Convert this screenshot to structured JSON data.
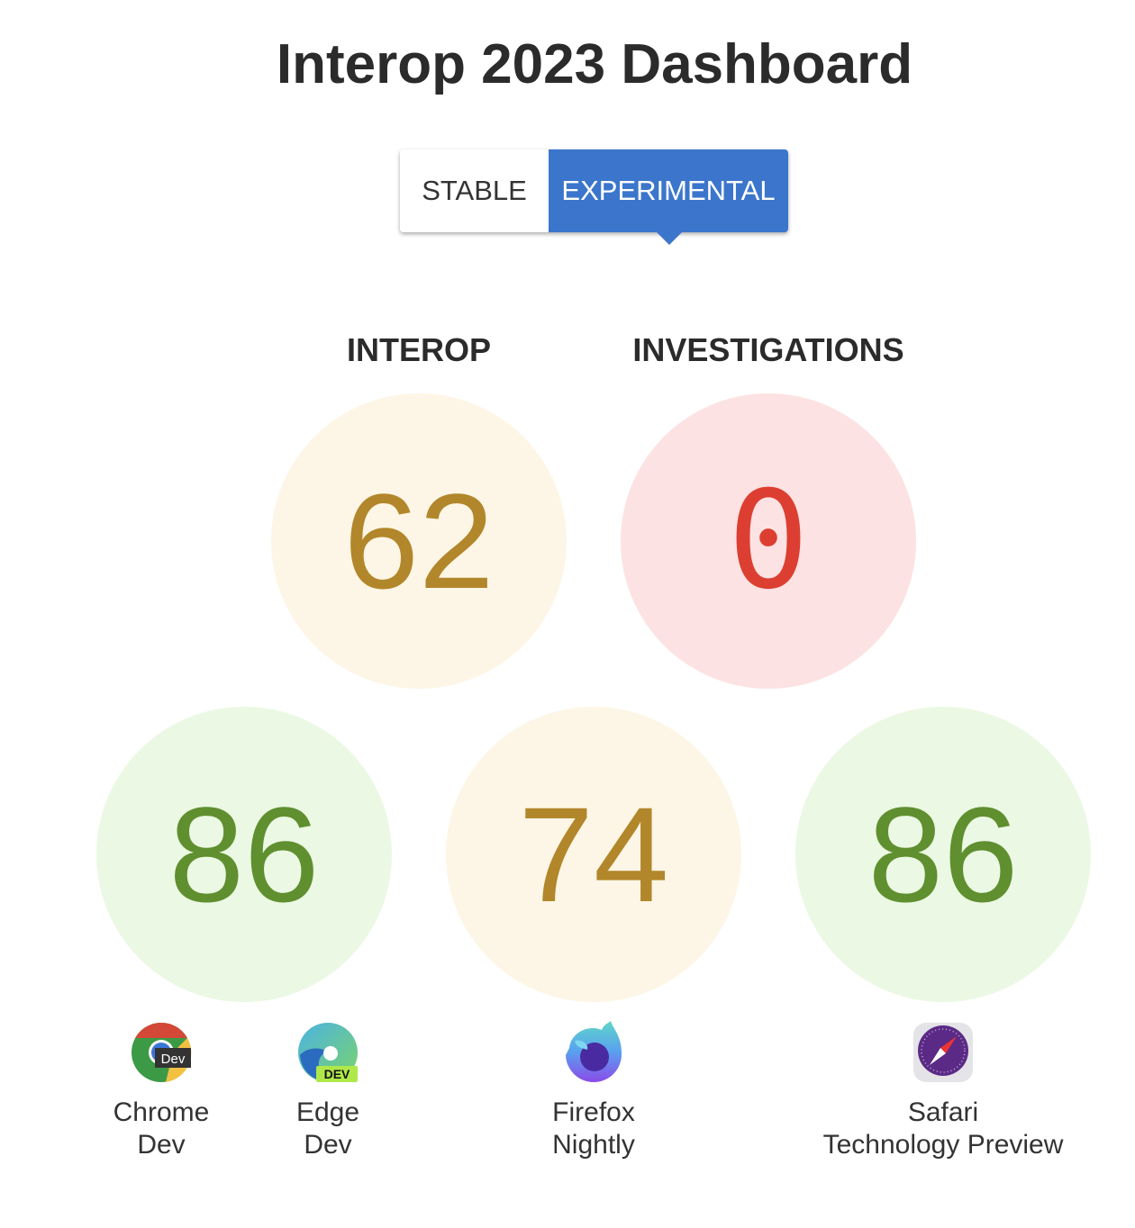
{
  "title": "Interop 2023 Dashboard",
  "toggle": {
    "stable_label": "STABLE",
    "experimental_label": "EXPERIMENTAL",
    "selected": "EXPERIMENTAL"
  },
  "summary": {
    "interop": {
      "label": "INTEROP",
      "score": "62"
    },
    "investigations": {
      "label": "INVESTIGATIONS",
      "score": "0"
    }
  },
  "browser_scores": [
    {
      "score": "86",
      "color": "#5f8f2f"
    },
    {
      "score": "74",
      "color": "#b2862a"
    },
    {
      "score": "86",
      "color": "#5f8f2f"
    }
  ],
  "browsers": [
    {
      "line1": "Chrome",
      "line2": "Dev",
      "icon": "chrome-dev-icon"
    },
    {
      "line1": "Edge",
      "line2": "Dev",
      "icon": "edge-dev-icon"
    },
    {
      "line1": "Firefox",
      "line2": "Nightly",
      "icon": "firefox-nightly-icon"
    },
    {
      "line1": "Safari",
      "line2": "Technology Preview",
      "icon": "safari-tp-icon"
    }
  ]
}
